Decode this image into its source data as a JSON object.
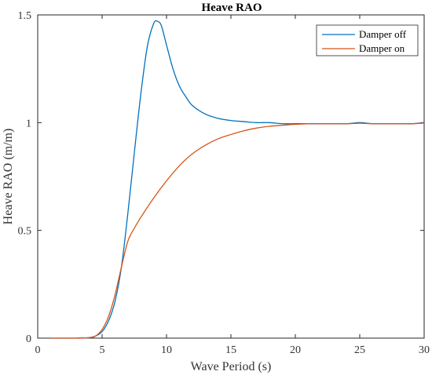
{
  "chart_data": {
    "type": "line",
    "title": "Heave RAO",
    "xlabel": "Wave Period (s)",
    "ylabel": "Heave RAO (m/m)",
    "xlim": [
      0,
      30
    ],
    "ylim": [
      0,
      1.5
    ],
    "xticks": [
      0,
      5,
      10,
      15,
      20,
      25,
      30
    ],
    "xtick_labels": [
      "0",
      "5",
      "10",
      "15",
      "20",
      "25",
      "30"
    ],
    "yticks": [
      0,
      0.5,
      1,
      1.5
    ],
    "ytick_labels": [
      "0",
      "0.5",
      "1",
      "1.5"
    ],
    "grid": false,
    "legend_position": "top-right",
    "series": [
      {
        "name": "Damper off",
        "color": "#0072BD",
        "x": [
          1,
          2,
          3,
          4,
          4.5,
          5,
          5.5,
          6,
          6.5,
          7,
          7.5,
          8,
          8.5,
          9,
          9.3,
          9.6,
          10,
          10.5,
          11,
          11.5,
          12,
          13,
          14,
          15,
          16,
          17,
          18,
          19,
          20,
          21,
          22,
          23,
          24,
          25,
          26,
          27,
          28,
          29,
          30
        ],
        "y": [
          0,
          0,
          0,
          0.002,
          0.01,
          0.03,
          0.08,
          0.17,
          0.33,
          0.58,
          0.86,
          1.13,
          1.35,
          1.46,
          1.47,
          1.45,
          1.36,
          1.25,
          1.17,
          1.12,
          1.08,
          1.04,
          1.02,
          1.01,
          1.005,
          1.0,
          1.0,
          0.995,
          0.995,
          0.995,
          0.995,
          0.995,
          0.995,
          1.0,
          0.995,
          0.995,
          0.995,
          0.995,
          1.0
        ]
      },
      {
        "name": "Damper on",
        "color": "#D95319",
        "x": [
          1,
          2,
          3,
          4,
          4.5,
          5,
          5.5,
          6,
          6.5,
          7,
          7.5,
          8,
          9,
          10,
          11,
          12,
          13,
          14,
          15,
          16,
          17,
          18,
          19,
          20,
          21,
          22,
          23,
          24,
          25,
          26,
          27,
          28,
          29,
          30
        ],
        "y": [
          0,
          0,
          0,
          0.002,
          0.01,
          0.04,
          0.1,
          0.2,
          0.33,
          0.45,
          0.51,
          0.56,
          0.65,
          0.73,
          0.8,
          0.855,
          0.895,
          0.925,
          0.945,
          0.962,
          0.975,
          0.983,
          0.988,
          0.992,
          0.995,
          0.995,
          0.995,
          0.995,
          0.997,
          0.995,
          0.995,
          0.995,
          0.995,
          0.998
        ]
      }
    ]
  }
}
